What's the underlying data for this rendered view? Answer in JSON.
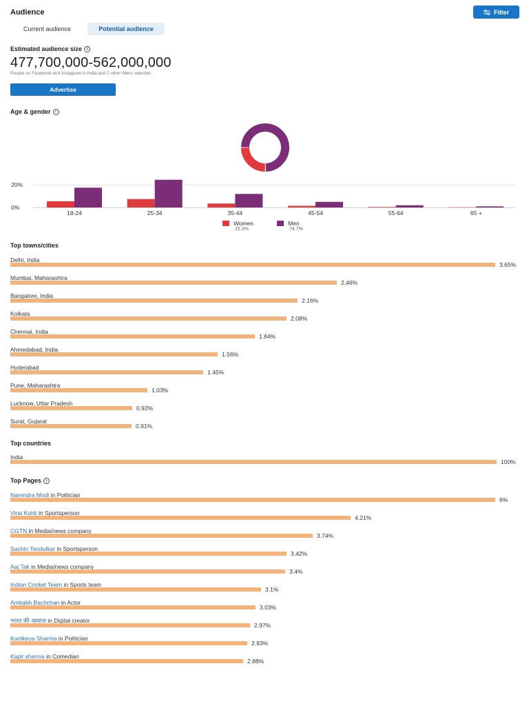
{
  "header": {
    "title": "Audience",
    "filter_label": "Filter",
    "tabs": [
      {
        "label": "Current audience",
        "active": false
      },
      {
        "label": "Potential audience",
        "active": true
      }
    ]
  },
  "estimate": {
    "title": "Estimated audience size",
    "value": "477,700,000-562,000,000",
    "subtext": "People on Facebook and Instagram in India and 2 other filters selected",
    "advertise_label": "Advertise"
  },
  "age_gender": {
    "title": "Age & gender",
    "legend": [
      {
        "label": "Women",
        "pct": "25.3%",
        "color": "#e0393e"
      },
      {
        "label": "Men",
        "pct": "74.7%",
        "color": "#7b2d78"
      }
    ]
  },
  "chart_data": {
    "type": "bar",
    "title": "Age & gender",
    "categories": [
      "18-24",
      "25-34",
      "35-44",
      "45-54",
      "55-64",
      "65+"
    ],
    "category_labels": [
      "18-24",
      "25-34",
      "35-44",
      "45-54",
      "55-64",
      "65 +"
    ],
    "series": [
      {
        "name": "Women",
        "color": "#e0393e",
        "values": [
          5.5,
          7.5,
          3.5,
          1.5,
          0.5,
          0.3
        ]
      },
      {
        "name": "Men",
        "color": "#7b2d78",
        "values": [
          17.5,
          24.5,
          12,
          5,
          2,
          1
        ]
      }
    ],
    "yticks": [
      "0%",
      "20%"
    ],
    "ylim": [
      0,
      28
    ],
    "donut": {
      "values": [
        25.3,
        74.7
      ],
      "colors": [
        "#e0393e",
        "#7b2d78"
      ]
    }
  },
  "top_cities": {
    "title": "Top towns/cities",
    "items": [
      {
        "label": "Delhi, India",
        "pct": "3.65%",
        "value": 3.65
      },
      {
        "label": "Mumbai, Maharashtra",
        "pct": "2.46%",
        "value": 2.46
      },
      {
        "label": "Bangalore, India",
        "pct": "2.16%",
        "value": 2.16
      },
      {
        "label": "Kolkata",
        "pct": "2.08%",
        "value": 2.08
      },
      {
        "label": "Chennai, India",
        "pct": "1.84%",
        "value": 1.84
      },
      {
        "label": "Ahmedabad, India",
        "pct": "1.56%",
        "value": 1.56
      },
      {
        "label": "Hyderabad",
        "pct": "1.45%",
        "value": 1.45
      },
      {
        "label": "Pune, Maharashtra",
        "pct": "1.03%",
        "value": 1.03
      },
      {
        "label": "Lucknow, Uttar Pradesh",
        "pct": "0.92%",
        "value": 0.92
      },
      {
        "label": "Surat, Gujarat",
        "pct": "0.91%",
        "value": 0.91
      }
    ]
  },
  "top_countries": {
    "title": "Top countries",
    "items": [
      {
        "label": "India",
        "pct": "100%",
        "value": 100
      }
    ]
  },
  "top_pages": {
    "title": "Top Pages",
    "items": [
      {
        "name": "Narendra Modi",
        "category": " in Politician",
        "pct": "6%",
        "value": 6
      },
      {
        "name": "Virat Kohli",
        "category": " in Sportsperson",
        "pct": "4.21%",
        "value": 4.21
      },
      {
        "name": "CGTN",
        "category": " in Media/news company",
        "pct": "3.74%",
        "value": 3.74
      },
      {
        "name": "Sachin Tendulkar",
        "category": " in Sportsperson",
        "pct": "3.42%",
        "value": 3.42
      },
      {
        "name": "Aaj Tak",
        "category": " in Media/news company",
        "pct": "3.4%",
        "value": 3.4
      },
      {
        "name": "Indian Cricket Team",
        "category": " in Sports team",
        "pct": "3.1%",
        "value": 3.1
      },
      {
        "name": "Amitabh Bachchan",
        "category": " in Actor",
        "pct": "3.03%",
        "value": 3.03
      },
      {
        "name": "भारत की आवाज़",
        "category": " in Digital creator",
        "pct": "2.97%",
        "value": 2.97
      },
      {
        "name": "Kartikeya Sharma",
        "category": " in Politician",
        "pct": "2.93%",
        "value": 2.93
      },
      {
        "name": "Kapil sharma",
        "category": " in Comedian",
        "pct": "2.88%",
        "value": 2.88
      }
    ]
  }
}
